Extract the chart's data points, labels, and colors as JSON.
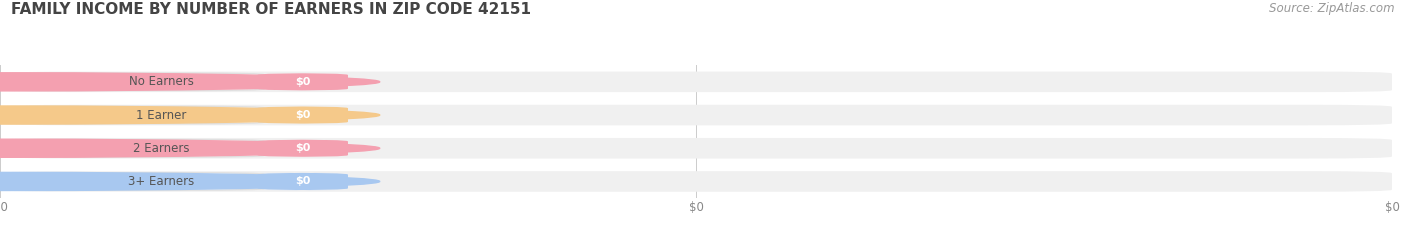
{
  "title": "FAMILY INCOME BY NUMBER OF EARNERS IN ZIP CODE 42151",
  "source": "Source: ZipAtlas.com",
  "categories": [
    "No Earners",
    "1 Earner",
    "2 Earners",
    "3+ Earners"
  ],
  "values": [
    0,
    0,
    0,
    0
  ],
  "bar_colors": [
    "#f4a0b0",
    "#f5c98a",
    "#f4a0b0",
    "#a8c8f0"
  ],
  "background_color": "#ffffff",
  "bar_bg_color": "#f0f0f0",
  "title_fontsize": 11,
  "source_fontsize": 8.5,
  "tick_label_color": "#888888",
  "label_text_color": "#555555"
}
